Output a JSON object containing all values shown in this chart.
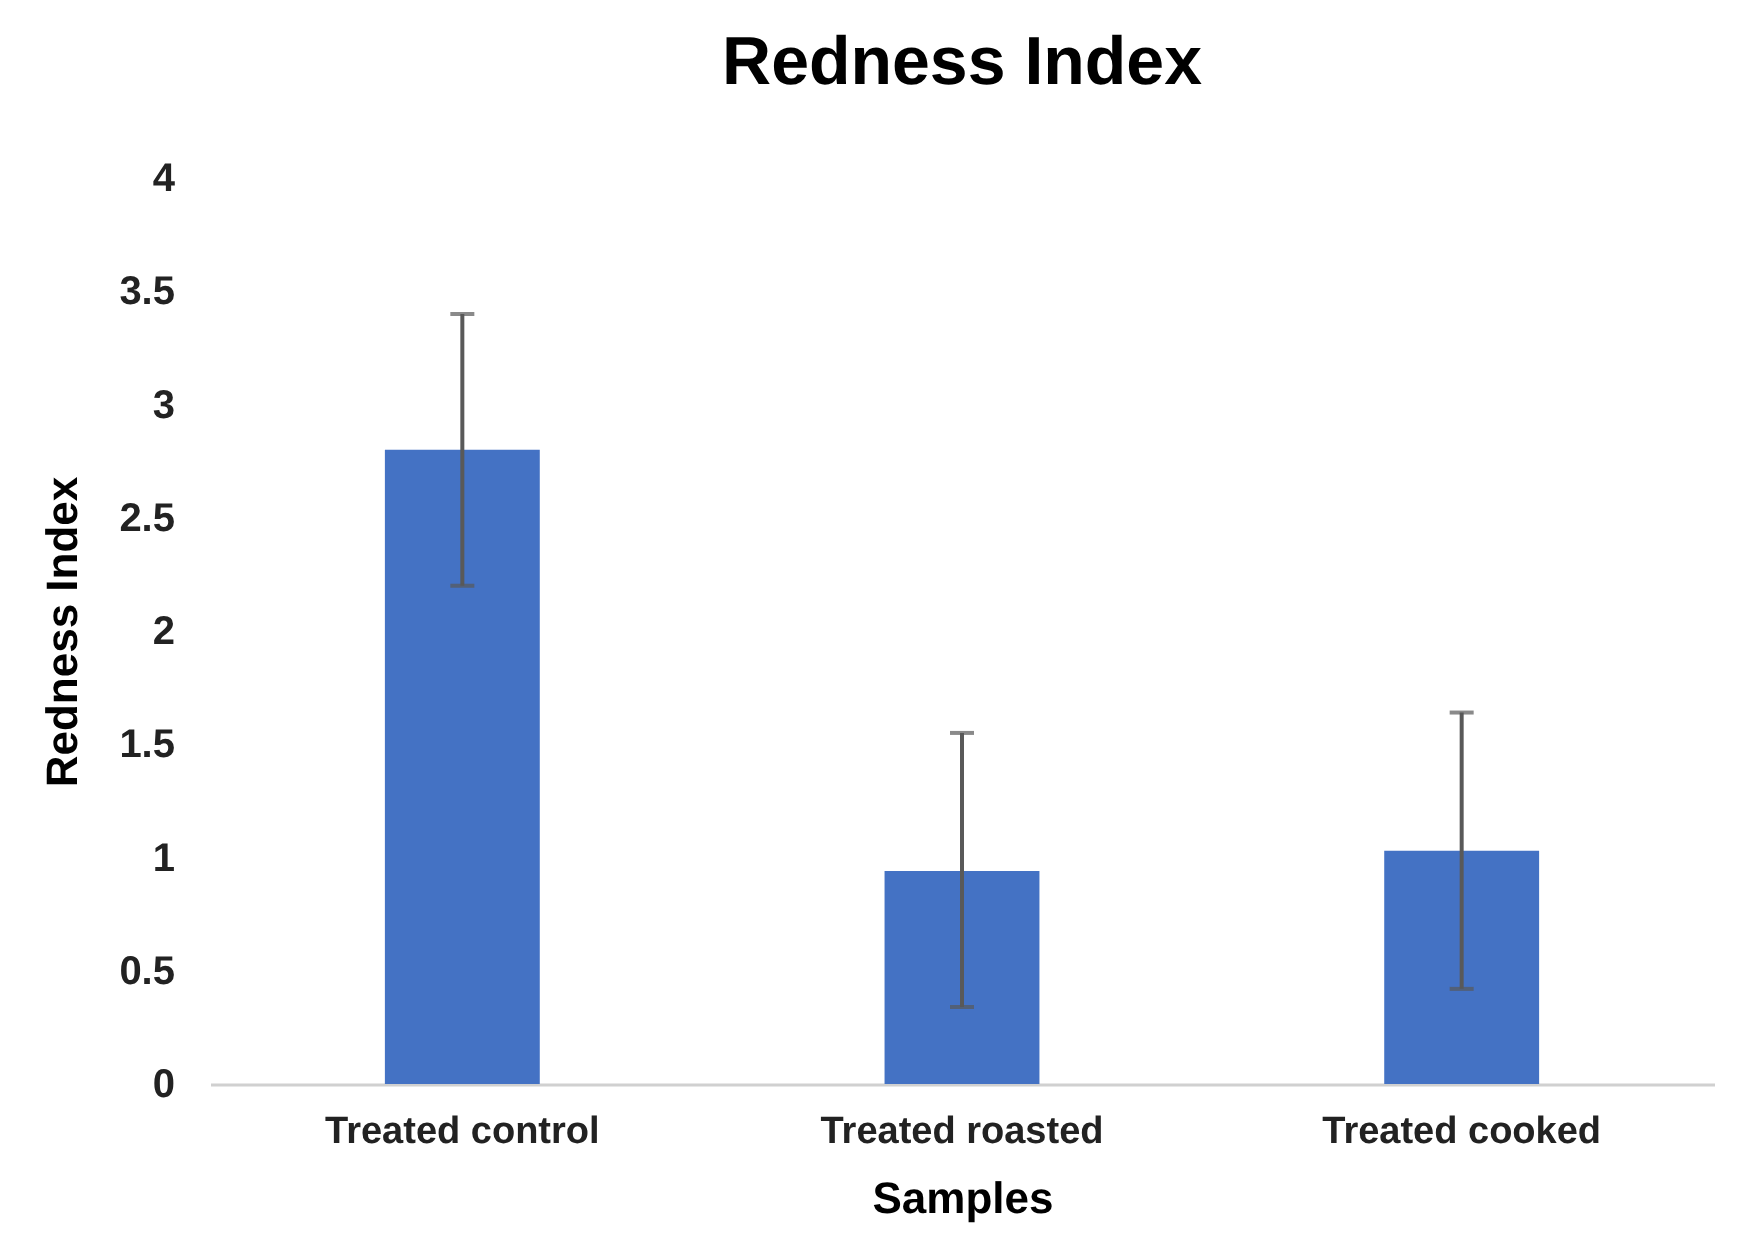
{
  "chart_data": {
    "type": "bar",
    "title": "Redness Index",
    "xlabel": "Samples",
    "ylabel": "Redness Index",
    "categories": [
      "Treated control",
      "Treated roasted",
      "Treated cooked"
    ],
    "values": [
      2.8,
      0.94,
      1.03
    ],
    "errors": [
      [
        2.2,
        3.4
      ],
      [
        0.34,
        1.55
      ],
      [
        0.42,
        1.64
      ]
    ],
    "color": "#4472c4",
    "ylim": [
      0,
      4
    ],
    "yticks": [
      0,
      0.5,
      1,
      1.5,
      2,
      2.5,
      3,
      3.5,
      4
    ],
    "grid": false
  }
}
